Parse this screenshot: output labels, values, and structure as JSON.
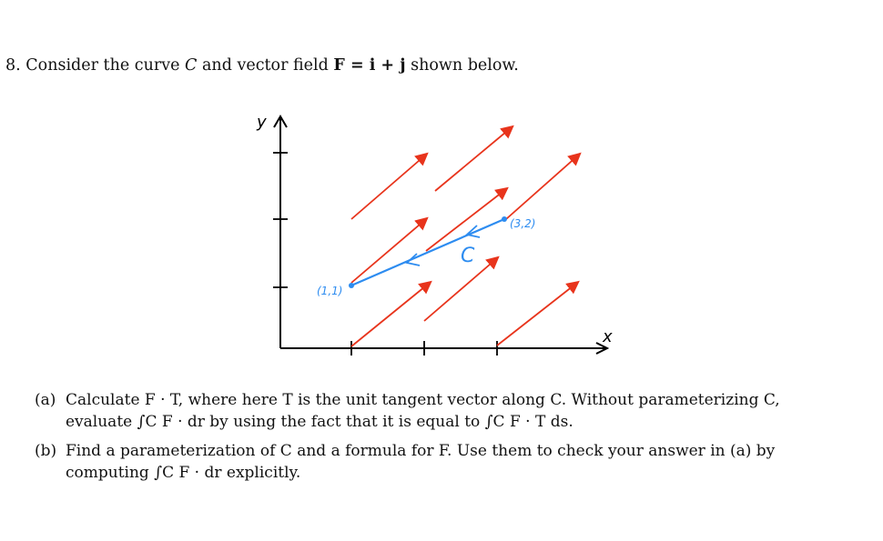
{
  "problem": {
    "number": "8.",
    "statement_prefix": "Consider the curve",
    "curve_symbol": "C",
    "statement_mid": "and vector field",
    "field_expression": "F = i + j",
    "statement_suffix": "shown below."
  },
  "figure": {
    "y_axis_label": "y",
    "x_axis_label": "x",
    "start_point_label": "(1,1)",
    "end_point_label": "(3,2)",
    "curve_label": "C",
    "colors": {
      "axes": "#000000",
      "field_arrows": "#e8341c",
      "curve": "#2d8cf0"
    },
    "icons": {
      "field_arrow": "arrow-icon",
      "axis_arrowhead": "arrowhead-icon"
    }
  },
  "parts": [
    {
      "label": "(a)",
      "line1": "Calculate F · T, where here T is the unit tangent vector along C. Without parameterizing C,",
      "line2": "evaluate ∫C F · dr by using the fact that it is equal to ∫C F · T ds."
    },
    {
      "label": "(b)",
      "line1": "Find a parameterization of C and a formula for F. Use them to check your answer in (a) by",
      "line2": "computing ∫C F · dr explicitly."
    }
  ]
}
